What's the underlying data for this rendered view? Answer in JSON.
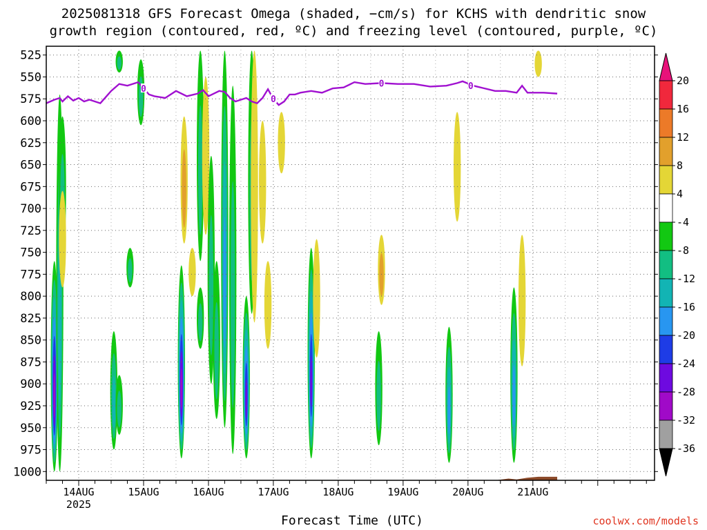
{
  "title": {
    "line1": "2025081318 GFS Forecast Omega (shaded, −cm/s) for KCHS with dendritic snow",
    "line2": "growth region (contoured, red, ºC) and freezing level (contoured, purple, ºC)"
  },
  "credit": "coolwx.com/models",
  "chart_data": {
    "type": "heatmap",
    "xlabel": "Forecast Time (UTC)",
    "ylabel": "",
    "x_unit": "hours since 2025081318",
    "xlim": [
      -6,
      219
    ],
    "y_levels": [
      525,
      550,
      575,
      600,
      625,
      650,
      675,
      700,
      725,
      750,
      775,
      800,
      825,
      850,
      875,
      900,
      925,
      950,
      975,
      1000
    ],
    "y_tick_labels": [
      "525",
      "550",
      "575",
      "600",
      "625",
      "650",
      "675",
      "700",
      "725",
      "750",
      "775",
      "800",
      "825",
      "850",
      "875",
      "900",
      "925",
      "950",
      "975",
      "1000"
    ],
    "ylim": [
      1010,
      515
    ],
    "x_ticks": [
      {
        "hour": 6,
        "label": "14AUG",
        "sublabel": "2025"
      },
      {
        "hour": 30,
        "label": "15AUG",
        "sublabel": ""
      },
      {
        "hour": 54,
        "label": "16AUG",
        "sublabel": ""
      },
      {
        "hour": 78,
        "label": "17AUG",
        "sublabel": ""
      },
      {
        "hour": 102,
        "label": "18AUG",
        "sublabel": ""
      },
      {
        "hour": 126,
        "label": "19AUG",
        "sublabel": ""
      },
      {
        "hour": 150,
        "label": "20AUG",
        "sublabel": ""
      },
      {
        "hour": 174,
        "label": "21AUG",
        "sublabel": ""
      }
    ],
    "grid": true,
    "colorbar": {
      "levels": [
        -36,
        -32,
        -28,
        -24,
        -20,
        -16,
        -12,
        -8,
        -4,
        4,
        8,
        12,
        16,
        20
      ],
      "tick_labels": [
        "20",
        "16",
        "12",
        "8",
        "4",
        "-4",
        "-8",
        "-12",
        "-16",
        "-20",
        "-24",
        "-28",
        "-32",
        "-36"
      ],
      "top_arrow_color": "#e8127a",
      "bottom_arrow_color": "#000000",
      "bins": [
        {
          "min": 20,
          "max": null,
          "color": "#e8127a"
        },
        {
          "min": 16,
          "max": 20,
          "color": "#f0283c"
        },
        {
          "min": 12,
          "max": 16,
          "color": "#ec7a28"
        },
        {
          "min": 8,
          "max": 12,
          "color": "#e2a02c"
        },
        {
          "min": 4,
          "max": 8,
          "color": "#e4d636"
        },
        {
          "min": -4,
          "max": 4,
          "color": "#ffffff"
        },
        {
          "min": -8,
          "max": -4,
          "color": "#12c812"
        },
        {
          "min": -12,
          "max": -8,
          "color": "#12be82"
        },
        {
          "min": -16,
          "max": -12,
          "color": "#12b4b4"
        },
        {
          "min": -20,
          "max": -16,
          "color": "#2896f0"
        },
        {
          "min": -24,
          "max": -20,
          "color": "#1e3ce6"
        },
        {
          "min": -28,
          "max": -24,
          "color": "#6e0ae0"
        },
        {
          "min": -32,
          "max": -28,
          "color": "#a00ac8"
        },
        {
          "min": -36,
          "max": -32,
          "color": "#a0a0a0"
        },
        {
          "min": null,
          "max": -36,
          "color": "#000000"
        }
      ]
    },
    "omega_regions": [
      {
        "hour": -3,
        "pbot": 1000,
        "ptop": 760,
        "min_value": -28
      },
      {
        "hour": -1,
        "pbot": 1000,
        "ptop": 570,
        "min_value": -12
      },
      {
        "hour": 0,
        "pbot": 760,
        "ptop": 595,
        "min_value": -8
      },
      {
        "hour": 0,
        "pbot": 790,
        "ptop": 680,
        "min_value": 4
      },
      {
        "hour": 19,
        "pbot": 975,
        "ptop": 840,
        "min_value": -12
      },
      {
        "hour": 21,
        "pbot": 958,
        "ptop": 890,
        "min_value": -8
      },
      {
        "hour": 21,
        "pbot": 545,
        "ptop": 520,
        "min_value": -8
      },
      {
        "hour": 25,
        "pbot": 790,
        "ptop": 745,
        "min_value": -8
      },
      {
        "hour": 29,
        "pbot": 605,
        "ptop": 530,
        "min_value": -8
      },
      {
        "hour": 44,
        "pbot": 985,
        "ptop": 765,
        "min_value": -28
      },
      {
        "hour": 45,
        "pbot": 740,
        "ptop": 595,
        "min_value": 8
      },
      {
        "hour": 48,
        "pbot": 800,
        "ptop": 745,
        "min_value": 4
      },
      {
        "hour": 51,
        "pbot": 760,
        "ptop": 520,
        "min_value": -8
      },
      {
        "hour": 51,
        "pbot": 860,
        "ptop": 790,
        "min_value": -8
      },
      {
        "hour": 53,
        "pbot": 730,
        "ptop": 550,
        "min_value": 4
      },
      {
        "hour": 55,
        "pbot": 900,
        "ptop": 640,
        "min_value": -8
      },
      {
        "hour": 57,
        "pbot": 940,
        "ptop": 760,
        "min_value": -8
      },
      {
        "hour": 60,
        "pbot": 950,
        "ptop": 520,
        "min_value": -16
      },
      {
        "hour": 63,
        "pbot": 980,
        "ptop": 560,
        "min_value": -8
      },
      {
        "hour": 68,
        "pbot": 985,
        "ptop": 800,
        "min_value": -24
      },
      {
        "hour": 70,
        "pbot": 820,
        "ptop": 520,
        "min_value": -8
      },
      {
        "hour": 71,
        "pbot": 830,
        "ptop": 520,
        "min_value": 4
      },
      {
        "hour": 74,
        "pbot": 740,
        "ptop": 600,
        "min_value": 4
      },
      {
        "hour": 76,
        "pbot": 860,
        "ptop": 760,
        "min_value": 4
      },
      {
        "hour": 81,
        "pbot": 660,
        "ptop": 590,
        "min_value": 4
      },
      {
        "hour": 92,
        "pbot": 985,
        "ptop": 745,
        "min_value": -24
      },
      {
        "hour": 94,
        "pbot": 870,
        "ptop": 735,
        "min_value": 4
      },
      {
        "hour": 117,
        "pbot": 970,
        "ptop": 840,
        "min_value": -8
      },
      {
        "hour": 118,
        "pbot": 810,
        "ptop": 730,
        "min_value": 8
      },
      {
        "hour": 143,
        "pbot": 990,
        "ptop": 835,
        "min_value": -16
      },
      {
        "hour": 146,
        "pbot": 715,
        "ptop": 590,
        "min_value": 4
      },
      {
        "hour": 167,
        "pbot": 990,
        "ptop": 790,
        "min_value": -16
      },
      {
        "hour": 170,
        "pbot": 880,
        "ptop": 730,
        "min_value": 4
      },
      {
        "hour": 176,
        "pbot": 550,
        "ptop": 520,
        "min_value": 4
      }
    ],
    "freezing_level": {
      "label": "0",
      "color": "#a010d0",
      "x": [
        -6,
        -3,
        -1,
        0,
        2,
        4,
        6,
        8,
        10,
        14,
        18,
        21,
        24,
        28,
        30,
        32,
        34,
        38,
        42,
        46,
        50,
        52,
        54,
        58,
        60,
        62,
        64,
        66,
        68,
        70,
        72,
        74,
        76,
        78,
        80,
        82,
        84,
        86,
        88,
        92,
        96,
        100,
        104,
        108,
        112,
        118,
        124,
        130,
        136,
        142,
        146,
        148,
        152,
        156,
        160,
        164,
        168,
        170,
        172,
        174,
        178,
        183
      ],
      "y": [
        580,
        576,
        574,
        578,
        572,
        577,
        574,
        578,
        576,
        580,
        566,
        558,
        560,
        556,
        563,
        570,
        572,
        574,
        566,
        572,
        569,
        565,
        572,
        566,
        567,
        574,
        578,
        576,
        574,
        578,
        580,
        574,
        564,
        575,
        582,
        578,
        570,
        570,
        568,
        566,
        568,
        563,
        562,
        556,
        558,
        557,
        558,
        558,
        561,
        560,
        557,
        555,
        560,
        563,
        566,
        566,
        568,
        560,
        568,
        568,
        568,
        569
      ]
    },
    "dendritic_contours": [],
    "terrain": {
      "color": "#8c4a2a",
      "surface_pressure_x": [
        -6,
        10,
        20,
        40,
        60,
        70,
        80,
        90,
        100,
        120,
        140,
        150,
        160,
        165,
        168,
        172,
        176,
        183
      ],
      "surface_pressure": [
        1012,
        1012,
        1013,
        1012,
        1013,
        1012,
        1011,
        1013,
        1011,
        1011,
        1011,
        1010,
        1010,
        1008,
        1009,
        1007,
        1006,
        1006
      ]
    }
  }
}
